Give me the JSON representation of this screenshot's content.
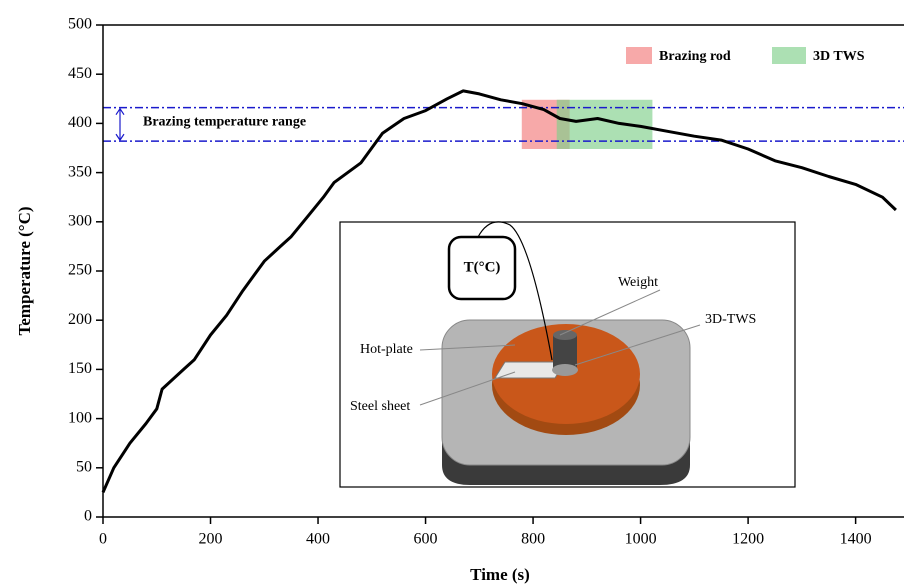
{
  "chart_data": {
    "type": "line",
    "x_label": "Time (s)",
    "y_label": "Temperature (°C)",
    "xlim": [
      0,
      1490
    ],
    "ylim": [
      0,
      500
    ],
    "xticks": [
      0,
      200,
      400,
      600,
      800,
      1000,
      1200,
      1400
    ],
    "yticks": [
      0,
      50,
      100,
      150,
      200,
      250,
      300,
      350,
      400,
      450,
      500
    ],
    "color": "#000000",
    "x": [
      0,
      20,
      50,
      80,
      100,
      110,
      150,
      170,
      200,
      230,
      260,
      300,
      330,
      350,
      380,
      410,
      430,
      480,
      520,
      560,
      600,
      640,
      670,
      700,
      740,
      780,
      820,
      850,
      880,
      920,
      960,
      1000,
      1050,
      1100,
      1150,
      1200,
      1250,
      1300,
      1350,
      1400,
      1450,
      1475
    ],
    "values": [
      25,
      50,
      75,
      95,
      110,
      130,
      150,
      160,
      185,
      205,
      230,
      260,
      275,
      285,
      305,
      325,
      340,
      360,
      390,
      405,
      413,
      425,
      433,
      430,
      424,
      420,
      414,
      405,
      402,
      405,
      400,
      397,
      392,
      387,
      383,
      374,
      362,
      355,
      346,
      338,
      325,
      312
    ],
    "regions": [
      {
        "name": "Brazing rod",
        "color": "#f27b7b",
        "x": [
          779,
          868
        ],
        "y": [
          374,
          424
        ]
      },
      {
        "name": "3D TWS",
        "color": "#7fcf8a",
        "x": [
          844,
          1022
        ],
        "y": [
          374,
          424
        ]
      }
    ],
    "range_lines": {
      "label": "Brazing temperature range",
      "values": [
        416,
        382
      ],
      "color": "#1a1acc"
    },
    "inset_labels": [
      "T(°C)",
      "Weight",
      "3D-TWS",
      "Hot-plate",
      "Steel sheet"
    ]
  }
}
